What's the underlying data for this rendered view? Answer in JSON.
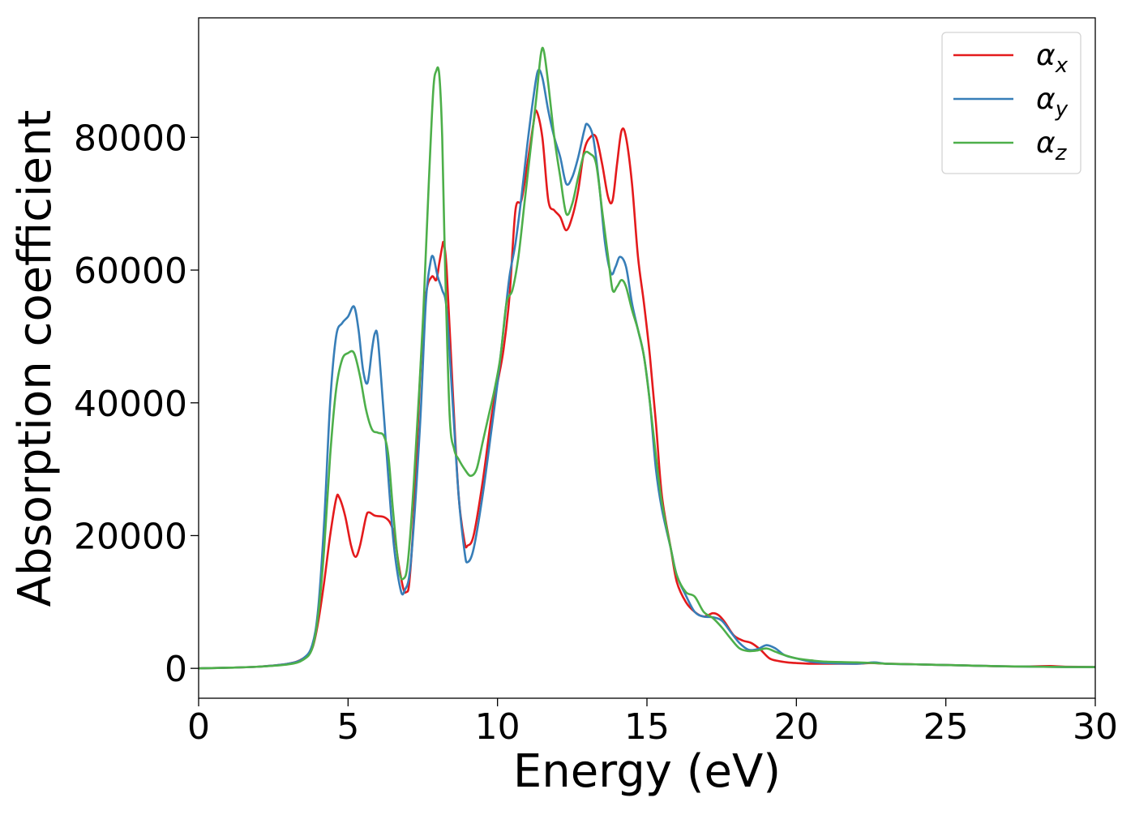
{
  "chart_data": {
    "type": "line",
    "title": "",
    "xlabel": "Energy (eV)",
    "ylabel": "Absorption coefficient",
    "xlim": [
      0,
      30
    ],
    "ylim": [
      -4500,
      98000
    ],
    "xticks": [
      "0",
      "5",
      "10",
      "15",
      "20",
      "25",
      "30"
    ],
    "yticks": [
      "0",
      "20000",
      "40000",
      "60000",
      "80000"
    ],
    "grid": false,
    "legend_position": "top-right",
    "series": [
      {
        "name": "α_x",
        "legend_main": "α",
        "legend_sub": "x",
        "color": "#e41a1c",
        "x": [
          0,
          1,
          2,
          3,
          3.5,
          3.8,
          4.0,
          4.2,
          4.4,
          4.6,
          4.7,
          4.9,
          5.1,
          5.25,
          5.4,
          5.6,
          5.7,
          5.9,
          6.2,
          6.4,
          6.55,
          6.7,
          6.85,
          6.95,
          7.05,
          7.2,
          7.4,
          7.6,
          7.8,
          7.95,
          8.05,
          8.15,
          8.2,
          8.3,
          8.5,
          8.7,
          8.9,
          9.0,
          9.2,
          9.5,
          9.8,
          10.0,
          10.2,
          10.4,
          10.6,
          10.8,
          11.0,
          11.2,
          11.3,
          11.5,
          11.7,
          11.9,
          12.1,
          12.3,
          12.5,
          12.7,
          12.9,
          13.1,
          13.3,
          13.5,
          13.7,
          13.85,
          14.0,
          14.15,
          14.3,
          14.5,
          14.7,
          14.9,
          15.1,
          15.3,
          15.5,
          15.8,
          16.0,
          16.3,
          16.6,
          16.9,
          17.2,
          17.4,
          17.6,
          17.9,
          18.2,
          18.5,
          18.8,
          19.1,
          19.4,
          19.7,
          20.0,
          20.5,
          21.0,
          22.0,
          22.5,
          23.0,
          24.0,
          25.0,
          26.0,
          27.0,
          28.0,
          28.5,
          29.0,
          30.0
        ],
        "values": [
          0,
          100,
          250,
          700,
          1500,
          3000,
          7000,
          13000,
          20000,
          25500,
          25800,
          23000,
          18500,
          16800,
          18500,
          22800,
          23500,
          23000,
          22800,
          22000,
          20000,
          15500,
          12000,
          11500,
          13000,
          23000,
          43000,
          56000,
          59000,
          58500,
          61000,
          63500,
          64000,
          60000,
          42000,
          26000,
          19000,
          18500,
          20000,
          28000,
          38000,
          43000,
          48000,
          56000,
          69000,
          70500,
          76000,
          82000,
          84000,
          80000,
          70500,
          69000,
          68000,
          66000,
          68000,
          72000,
          78000,
          80000,
          80000,
          76000,
          71000,
          70500,
          76000,
          81000,
          80000,
          73000,
          62000,
          55000,
          47000,
          37000,
          26000,
          18000,
          13000,
          10000,
          8500,
          7800,
          8300,
          8000,
          7000,
          5000,
          4200,
          3800,
          2800,
          1500,
          1100,
          900,
          800,
          700,
          700,
          700,
          800,
          700,
          600,
          500,
          400,
          300,
          300,
          350,
          250,
          200
        ]
      },
      {
        "name": "α_y",
        "legend_main": "α",
        "legend_sub": "y",
        "color": "#377eb8",
        "x": [
          0,
          1,
          2,
          3,
          3.5,
          3.8,
          4.0,
          4.2,
          4.4,
          4.6,
          4.8,
          5.0,
          5.2,
          5.35,
          5.5,
          5.65,
          5.8,
          5.9,
          6.0,
          6.2,
          6.5,
          6.75,
          6.9,
          7.1,
          7.4,
          7.6,
          7.75,
          7.85,
          8.0,
          8.15,
          8.3,
          8.5,
          8.7,
          8.9,
          9.0,
          9.2,
          9.5,
          9.8,
          10.0,
          10.2,
          10.4,
          10.6,
          10.8,
          11.0,
          11.2,
          11.35,
          11.5,
          11.7,
          11.9,
          12.1,
          12.3,
          12.5,
          12.7,
          12.9,
          13.0,
          13.2,
          13.4,
          13.6,
          13.8,
          13.95,
          14.1,
          14.3,
          14.5,
          14.7,
          14.9,
          15.1,
          15.3,
          15.5,
          15.8,
          16.0,
          16.3,
          16.6,
          16.9,
          17.2,
          17.5,
          17.8,
          18.1,
          18.4,
          18.7,
          19.0,
          19.3,
          19.6,
          20.0,
          20.5,
          21.0,
          22.0,
          22.6,
          23.0,
          24.0,
          25.0,
          26.0,
          27.0,
          28.0,
          29.0,
          30.0
        ],
        "values": [
          0,
          100,
          250,
          700,
          1500,
          3500,
          9000,
          22000,
          40000,
          50000,
          52000,
          53000,
          54500,
          51000,
          45000,
          43000,
          48000,
          50500,
          49500,
          38000,
          20000,
          12000,
          11800,
          16000,
          36000,
          55000,
          61000,
          62000,
          59000,
          57000,
          54000,
          40000,
          26000,
          17500,
          16000,
          18000,
          26000,
          36000,
          43000,
          51000,
          59000,
          64000,
          71000,
          79000,
          86000,
          90000,
          89000,
          84000,
          80000,
          77000,
          73000,
          74000,
          77000,
          81000,
          82000,
          80000,
          73000,
          64000,
          59500,
          60500,
          62000,
          60500,
          55000,
          51000,
          47000,
          40000,
          30000,
          24000,
          18000,
          14000,
          11000,
          8500,
          7800,
          7700,
          7200,
          5500,
          3800,
          2800,
          2900,
          3500,
          3000,
          2000,
          1500,
          1000,
          800,
          700,
          900,
          700,
          600,
          500,
          400,
          300,
          250,
          200,
          200
        ]
      },
      {
        "name": "α_z",
        "legend_main": "α",
        "legend_sub": "z",
        "color": "#4daf4a",
        "x": [
          0,
          1,
          2,
          3,
          3.5,
          3.8,
          4.0,
          4.2,
          4.4,
          4.6,
          4.8,
          5.0,
          5.2,
          5.4,
          5.6,
          5.8,
          6.0,
          6.2,
          6.35,
          6.5,
          6.7,
          6.85,
          7.0,
          7.2,
          7.5,
          7.7,
          7.85,
          7.95,
          8.05,
          8.15,
          8.25,
          8.4,
          8.55,
          8.7,
          8.9,
          9.1,
          9.3,
          9.5,
          9.7,
          9.9,
          10.1,
          10.3,
          10.5,
          10.7,
          10.9,
          11.1,
          11.3,
          11.45,
          11.55,
          11.7,
          11.9,
          12.1,
          12.3,
          12.5,
          12.7,
          12.9,
          13.1,
          13.3,
          13.5,
          13.7,
          13.85,
          14.0,
          14.15,
          14.3,
          14.5,
          14.7,
          14.9,
          15.1,
          15.3,
          15.5,
          15.8,
          16.0,
          16.3,
          16.6,
          16.9,
          17.2,
          17.5,
          17.8,
          18.1,
          18.4,
          18.7,
          19.0,
          19.3,
          19.6,
          20.0,
          20.5,
          21.0,
          22.0,
          22.6,
          23.0,
          24.0,
          25.0,
          26.0,
          27.0,
          28.0,
          29.0,
          30.0
        ],
        "values": [
          0,
          100,
          250,
          600,
          1300,
          3000,
          8000,
          18000,
          32000,
          42000,
          46500,
          47500,
          47500,
          44000,
          39000,
          36000,
          35500,
          35000,
          32000,
          24000,
          15000,
          13500,
          16000,
          28000,
          52000,
          73000,
          87000,
          90000,
          89500,
          80000,
          60000,
          38000,
          33000,
          31500,
          30000,
          29000,
          30000,
          34000,
          38000,
          42000,
          47000,
          55000,
          57000,
          62000,
          70000,
          78000,
          86000,
          92500,
          93000,
          88000,
          80000,
          74000,
          68500,
          70000,
          74000,
          77500,
          77500,
          76000,
          69000,
          62000,
          57000,
          57500,
          58500,
          57500,
          54000,
          51000,
          47000,
          40000,
          32000,
          25000,
          18000,
          14000,
          11500,
          10800,
          8500,
          7600,
          6200,
          4500,
          3000,
          2600,
          2700,
          3000,
          2500,
          2000,
          1500,
          1200,
          1000,
          900,
          800,
          700,
          600,
          500,
          400,
          300,
          250,
          200,
          200
        ]
      }
    ]
  }
}
